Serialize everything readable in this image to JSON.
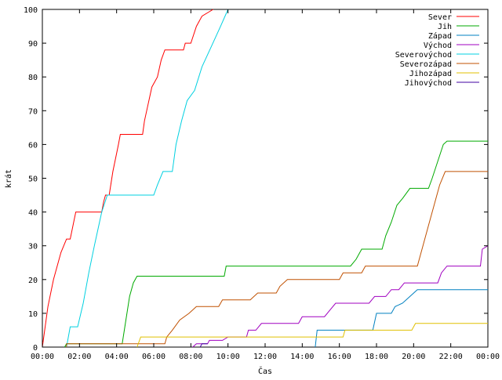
{
  "chart_data": {
    "type": "line",
    "title": "",
    "xlabel": "Čas",
    "ylabel": "krát",
    "xlim": [
      0,
      24
    ],
    "ylim": [
      0,
      100
    ],
    "grid": false,
    "legend_position": "top-right",
    "x_ticks": [
      {
        "value": 0,
        "label": "00:00"
      },
      {
        "value": 2,
        "label": "02:00"
      },
      {
        "value": 4,
        "label": "04:00"
      },
      {
        "value": 6,
        "label": "06:00"
      },
      {
        "value": 8,
        "label": "08:00"
      },
      {
        "value": 10,
        "label": "10:00"
      },
      {
        "value": 12,
        "label": "12:00"
      },
      {
        "value": 14,
        "label": "14:00"
      },
      {
        "value": 16,
        "label": "16:00"
      },
      {
        "value": 18,
        "label": "18:00"
      },
      {
        "value": 20,
        "label": "20:00"
      },
      {
        "value": 22,
        "label": "22:00"
      },
      {
        "value": 24,
        "label": "00:00"
      }
    ],
    "y_ticks": [
      {
        "value": 0,
        "label": "0"
      },
      {
        "value": 10,
        "label": "10"
      },
      {
        "value": 20,
        "label": "20"
      },
      {
        "value": 30,
        "label": "30"
      },
      {
        "value": 40,
        "label": "40"
      },
      {
        "value": 50,
        "label": "50"
      },
      {
        "value": 60,
        "label": "60"
      },
      {
        "value": 70,
        "label": "70"
      },
      {
        "value": 80,
        "label": "80"
      },
      {
        "value": 90,
        "label": "90"
      },
      {
        "value": 100,
        "label": "100"
      }
    ],
    "series": [
      {
        "name": "Sever",
        "color": "#ff0000",
        "points": [
          [
            0,
            0
          ],
          [
            0.3,
            12
          ],
          [
            0.6,
            20
          ],
          [
            1.0,
            28
          ],
          [
            1.3,
            32
          ],
          [
            1.5,
            32
          ],
          [
            1.8,
            40
          ],
          [
            3.2,
            40
          ],
          [
            3.3,
            43
          ],
          [
            3.4,
            45
          ],
          [
            3.6,
            45
          ],
          [
            3.8,
            52
          ],
          [
            4.1,
            60
          ],
          [
            4.2,
            63
          ],
          [
            5.4,
            63
          ],
          [
            5.5,
            67
          ],
          [
            5.7,
            72
          ],
          [
            5.9,
            77
          ],
          [
            6.2,
            80
          ],
          [
            6.4,
            85
          ],
          [
            6.6,
            88
          ],
          [
            7.6,
            88
          ],
          [
            7.7,
            90
          ],
          [
            8.0,
            90
          ],
          [
            8.3,
            95
          ],
          [
            8.6,
            98
          ],
          [
            9.2,
            100
          ]
        ]
      },
      {
        "name": "Jih",
        "color": "#00aa00",
        "points": [
          [
            1.2,
            0
          ],
          [
            1.3,
            1
          ],
          [
            4.3,
            1
          ],
          [
            4.5,
            8
          ],
          [
            4.7,
            15
          ],
          [
            4.9,
            19
          ],
          [
            5.1,
            21
          ],
          [
            9.8,
            21
          ],
          [
            9.9,
            24
          ],
          [
            16.6,
            24
          ],
          [
            16.9,
            26
          ],
          [
            17.2,
            29
          ],
          [
            18.3,
            29
          ],
          [
            18.5,
            33
          ],
          [
            18.8,
            37
          ],
          [
            19.1,
            42
          ],
          [
            19.4,
            44
          ],
          [
            19.8,
            47
          ],
          [
            20.8,
            47
          ],
          [
            21.0,
            50
          ],
          [
            21.3,
            55
          ],
          [
            21.6,
            60
          ],
          [
            21.8,
            61
          ],
          [
            24,
            61
          ]
        ]
      },
      {
        "name": "Západ",
        "color": "#0080c0",
        "points": [
          [
            14.7,
            0
          ],
          [
            14.8,
            5
          ],
          [
            16.6,
            5
          ],
          [
            16.8,
            5
          ],
          [
            17.8,
            5
          ],
          [
            18.0,
            10
          ],
          [
            18.8,
            10
          ],
          [
            19.0,
            12
          ],
          [
            19.4,
            13
          ],
          [
            19.8,
            15
          ],
          [
            20.2,
            17
          ],
          [
            24,
            17
          ]
        ]
      },
      {
        "name": "Východ",
        "color": "#a000c0",
        "points": [
          [
            8.1,
            0
          ],
          [
            8.3,
            1
          ],
          [
            8.9,
            1
          ],
          [
            9.0,
            2
          ],
          [
            9.7,
            2
          ],
          [
            10.0,
            3
          ],
          [
            11.0,
            3
          ],
          [
            11.1,
            5
          ],
          [
            11.5,
            5
          ],
          [
            11.8,
            7
          ],
          [
            13.8,
            7
          ],
          [
            14.0,
            9
          ],
          [
            15.2,
            9
          ],
          [
            15.5,
            11
          ],
          [
            15.8,
            13
          ],
          [
            17.6,
            13
          ],
          [
            17.9,
            15
          ],
          [
            18.5,
            15
          ],
          [
            18.8,
            17
          ],
          [
            19.2,
            17
          ],
          [
            19.5,
            19
          ],
          [
            21.3,
            19
          ],
          [
            21.5,
            22
          ],
          [
            21.8,
            24
          ],
          [
            23.6,
            24
          ],
          [
            23.7,
            29
          ],
          [
            24,
            30
          ]
        ]
      },
      {
        "name": "Severovýchod",
        "color": "#00d0e0",
        "points": [
          [
            1.3,
            0
          ],
          [
            1.5,
            6
          ],
          [
            1.9,
            6
          ],
          [
            2.2,
            13
          ],
          [
            2.5,
            22
          ],
          [
            2.8,
            30
          ],
          [
            3.0,
            35
          ],
          [
            3.2,
            40
          ],
          [
            3.5,
            45
          ],
          [
            6.0,
            45
          ],
          [
            6.2,
            48
          ],
          [
            6.5,
            52
          ],
          [
            7.0,
            52
          ],
          [
            7.2,
            60
          ],
          [
            7.5,
            67
          ],
          [
            7.8,
            73
          ],
          [
            8.2,
            76
          ],
          [
            8.6,
            83
          ],
          [
            9.1,
            89
          ],
          [
            9.6,
            95
          ],
          [
            10.0,
            100
          ]
        ]
      },
      {
        "name": "Severozápad",
        "color": "#c05000",
        "points": [
          [
            1.3,
            0
          ],
          [
            1.3,
            1
          ],
          [
            6.6,
            1
          ],
          [
            6.7,
            3
          ],
          [
            7.0,
            5
          ],
          [
            7.4,
            8
          ],
          [
            7.9,
            10
          ],
          [
            8.3,
            12
          ],
          [
            9.5,
            12
          ],
          [
            9.7,
            14
          ],
          [
            11.2,
            14
          ],
          [
            11.6,
            16
          ],
          [
            12.6,
            16
          ],
          [
            12.8,
            18
          ],
          [
            13.2,
            20
          ],
          [
            16.0,
            20
          ],
          [
            16.2,
            22
          ],
          [
            17.2,
            22
          ],
          [
            17.4,
            24
          ],
          [
            20.2,
            24
          ],
          [
            20.5,
            30
          ],
          [
            20.8,
            36
          ],
          [
            21.1,
            42
          ],
          [
            21.4,
            48
          ],
          [
            21.7,
            52
          ],
          [
            24,
            52
          ]
        ]
      },
      {
        "name": "Jihozápad",
        "color": "#e0c000",
        "points": [
          [
            5.1,
            0
          ],
          [
            5.3,
            3
          ],
          [
            16.2,
            3
          ],
          [
            16.3,
            5
          ],
          [
            19.9,
            5
          ],
          [
            20.1,
            7
          ],
          [
            24,
            7
          ]
        ]
      },
      {
        "name": "Jihovýchod",
        "color": "#4000a0",
        "points": [
          [
            8.5,
            0
          ],
          [
            8.6,
            1
          ],
          [
            8.9,
            1
          ]
        ]
      }
    ]
  }
}
